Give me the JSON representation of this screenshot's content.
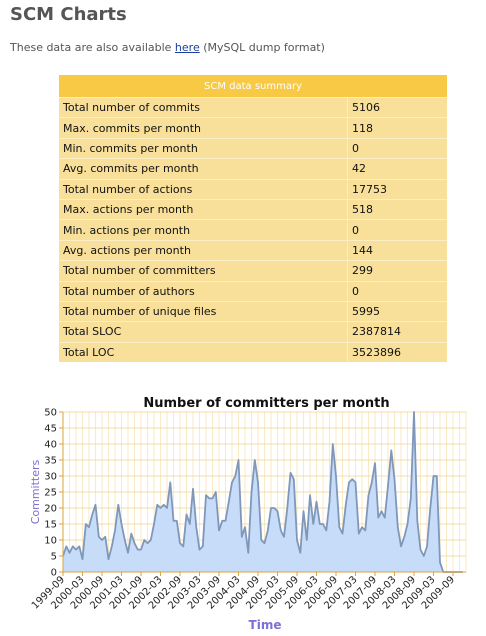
{
  "page": {
    "title": "SCM Charts",
    "intro_before": "These data are also available ",
    "intro_link": "here",
    "intro_after": " (MySQL dump format)"
  },
  "summary": {
    "header": "SCM data summary",
    "rows": [
      {
        "label": "Total number of commits",
        "value": "5106"
      },
      {
        "label": "Max. commits per month",
        "value": "118"
      },
      {
        "label": "Min. commits per month",
        "value": "0"
      },
      {
        "label": "Avg. commits per month",
        "value": "42"
      },
      {
        "label": "Total number of actions",
        "value": "17753"
      },
      {
        "label": "Max. actions per month",
        "value": "518"
      },
      {
        "label": "Min. actions per month",
        "value": "0"
      },
      {
        "label": "Avg. actions per month",
        "value": "144"
      },
      {
        "label": "Total number of committers",
        "value": "299"
      },
      {
        "label": "Total number of authors",
        "value": "0"
      },
      {
        "label": "Total number of unique files",
        "value": "5995"
      },
      {
        "label": "Total SLOC",
        "value": "2387814"
      },
      {
        "label": "Total LOC",
        "value": "3523896"
      }
    ]
  },
  "chart_data": {
    "type": "area",
    "title": "Number of committers per month",
    "xlabel": "Time",
    "ylabel": "Committers",
    "ylim": [
      0,
      50
    ],
    "yticks": [
      0,
      5,
      10,
      15,
      20,
      25,
      30,
      35,
      40,
      45,
      50
    ],
    "grid": true,
    "x_tick_labels": [
      "1999-09",
      "2000-03",
      "2000-09",
      "2001-03",
      "2001-09",
      "2002-03",
      "2002-09",
      "2003-03",
      "2003-09",
      "2004-03",
      "2004-09",
      "2005-03",
      "2005-09",
      "2006-03",
      "2006-09",
      "2007-03",
      "2007-09",
      "2008-03",
      "2008-09",
      "2009-03",
      "2009-09"
    ],
    "x_start": "1999-09",
    "x_end": "2010-01",
    "series": [
      {
        "color": "#7f97b9",
        "fill": "#c7dcf8",
        "values": [
          5,
          8,
          6,
          8,
          7,
          8,
          4,
          15,
          14,
          18,
          21,
          11,
          10,
          11,
          4,
          8,
          13,
          21,
          15,
          10,
          6,
          12,
          9,
          7,
          7,
          10,
          9,
          10,
          15,
          21,
          20,
          21,
          20,
          28,
          16,
          16,
          9,
          8,
          18,
          15,
          26,
          14,
          7,
          8,
          24,
          23,
          23,
          25,
          13,
          16,
          16,
          22,
          28,
          30,
          35,
          11,
          14,
          6,
          25,
          35,
          28,
          10,
          9,
          13,
          20,
          20,
          19,
          13,
          11,
          20,
          31,
          29,
          10,
          6,
          19,
          10,
          24,
          15,
          22,
          15,
          15,
          13,
          22,
          40,
          30,
          14,
          12,
          21,
          28,
          29,
          28,
          12,
          14,
          13,
          24,
          28,
          34,
          17,
          19,
          17,
          27,
          38,
          29,
          14,
          8,
          11,
          15,
          23,
          50,
          16,
          7,
          5,
          8,
          20,
          30,
          30,
          3,
          0,
          0,
          0,
          0,
          0,
          0,
          0
        ]
      }
    ]
  }
}
